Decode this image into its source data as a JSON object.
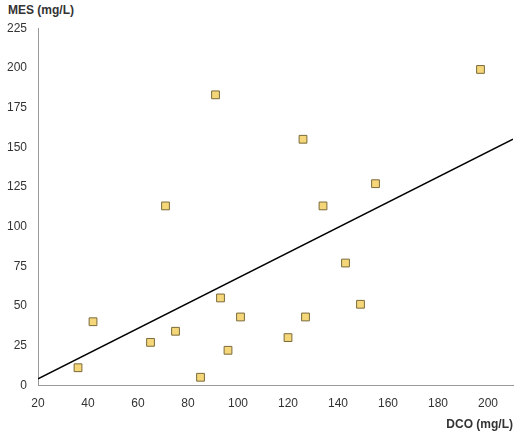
{
  "chart_data": {
    "type": "scatter",
    "x_label": "DCO (mg/L)",
    "y_label": "MES (mg/L)",
    "series": [
      {
        "type": "scatter",
        "color": "#f5d77a",
        "marker": "square",
        "x": [
          36,
          42,
          65,
          75,
          71,
          91,
          93,
          85,
          96,
          101,
          120,
          126,
          127,
          134,
          143,
          149,
          155,
          197
        ],
        "values": [
          11,
          40,
          27,
          34,
          113,
          183,
          55,
          5,
          22,
          43,
          30,
          155,
          43,
          113,
          77,
          51,
          127,
          199
        ]
      },
      {
        "type": "line",
        "color": "#000000",
        "line_style": "solid",
        "x": [
          20,
          210
        ],
        "values": [
          4,
          155
        ]
      }
    ],
    "xlim": [
      20,
      210
    ],
    "xticks": [
      20,
      40,
      60,
      80,
      100,
      120,
      140,
      160,
      180,
      200
    ],
    "ylim": [
      0,
      225
    ],
    "yticks": [
      0,
      25,
      50,
      75,
      100,
      125,
      150,
      175,
      200,
      225
    ],
    "grid": false
  }
}
